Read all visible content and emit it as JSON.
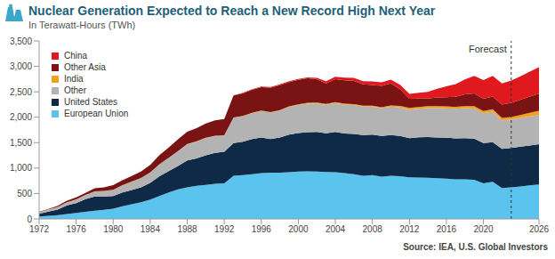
{
  "chart_data": {
    "type": "area",
    "title": "Nuclear Generation Expected to Reach a New Record High Next Year",
    "subtitle": "In Terawatt-Hours (TWh)",
    "source": "Source: IEA, U.S. Global Investors",
    "stacked": true,
    "legend": "top-left",
    "grid": false,
    "annotations": [
      {
        "text": "Forecast",
        "x": 2023
      }
    ],
    "x": [
      1972,
      1973,
      1974,
      1975,
      1976,
      1977,
      1978,
      1979,
      1980,
      1981,
      1982,
      1983,
      1984,
      1985,
      1986,
      1987,
      1988,
      1989,
      1990,
      1991,
      1992,
      1993,
      1994,
      1995,
      1996,
      1997,
      1998,
      1999,
      2000,
      2001,
      2002,
      2003,
      2004,
      2005,
      2006,
      2007,
      2008,
      2009,
      2010,
      2011,
      2012,
      2013,
      2014,
      2015,
      2016,
      2017,
      2018,
      2019,
      2020,
      2021,
      2022,
      2023,
      2024,
      2025,
      2026
    ],
    "xlim": [
      1972,
      2026
    ],
    "xticks": [
      1972,
      1976,
      1980,
      1984,
      1988,
      1992,
      1996,
      2000,
      2004,
      2008,
      2012,
      2016,
      2020,
      2026
    ],
    "ylim": [
      0,
      3500
    ],
    "yticks": [
      0,
      500,
      {
        "value": 1000,
        "label": "1,000"
      },
      {
        "value": 1500,
        "label": "1,500"
      },
      {
        "value": 2000,
        "label": "2,000"
      },
      {
        "value": 2500,
        "label": "2,500"
      },
      {
        "value": 3000,
        "label": "3,000"
      },
      {
        "value": 3500,
        "label": "3,500"
      }
    ],
    "series": [
      {
        "name": "China",
        "color": "#e0191e",
        "values": [
          0,
          0,
          0,
          0,
          0,
          0,
          0,
          0,
          0,
          0,
          0,
          0,
          0,
          0,
          0,
          0,
          0,
          0,
          0,
          0,
          0,
          3,
          13,
          13,
          14,
          14,
          14,
          15,
          17,
          18,
          25,
          43,
          50,
          53,
          55,
          62,
          68,
          70,
          74,
          86,
          97,
          112,
          133,
          171,
          213,
          248,
          295,
          348,
          366,
          408,
          418,
          435,
          460,
          490,
          520
        ]
      },
      {
        "name": "Other Asia",
        "color": "#7a1414",
        "values": [
          8,
          10,
          20,
          30,
          40,
          40,
          60,
          70,
          90,
          100,
          110,
          130,
          150,
          180,
          200,
          230,
          240,
          260,
          280,
          300,
          320,
          430,
          440,
          450,
          460,
          480,
          490,
          480,
          480,
          480,
          460,
          400,
          450,
          460,
          460,
          420,
          410,
          420,
          430,
          330,
          180,
          170,
          150,
          170,
          180,
          200,
          230,
          250,
          240,
          250,
          260,
          280,
          300,
          320,
          340
        ]
      },
      {
        "name": "India",
        "color": "#f2a11f",
        "values": [
          2,
          2,
          2,
          2,
          3,
          3,
          3,
          3,
          3,
          3,
          3,
          3,
          4,
          5,
          5,
          5,
          6,
          6,
          6,
          6,
          6,
          6,
          6,
          8,
          9,
          10,
          11,
          12,
          15,
          18,
          19,
          18,
          17,
          17,
          17,
          17,
          15,
          17,
          23,
          32,
          33,
          34,
          36,
          38,
          38,
          38,
          39,
          46,
          43,
          47,
          48,
          50,
          60,
          70,
          80
        ]
      },
      {
        "name": "Other",
        "color": "#b3b3b3",
        "values": [
          30,
          40,
          50,
          60,
          70,
          80,
          100,
          110,
          120,
          140,
          160,
          180,
          200,
          230,
          260,
          290,
          320,
          330,
          340,
          330,
          320,
          500,
          500,
          510,
          520,
          520,
          530,
          540,
          550,
          560,
          560,
          560,
          570,
          570,
          570,
          560,
          550,
          550,
          560,
          560,
          560,
          560,
          570,
          580,
          580,
          580,
          590,
          590,
          590,
          600,
          560,
          560,
          565,
          570,
          575
        ]
      },
      {
        "name": "United States",
        "color": "#0f2a47",
        "values": [
          50,
          85,
          110,
          170,
          190,
          250,
          280,
          260,
          250,
          270,
          280,
          290,
          330,
          390,
          420,
          460,
          530,
          540,
          580,
          610,
          620,
          640,
          660,
          690,
          700,
          660,
          690,
          740,
          760,
          770,
          780,
          760,
          790,
          780,
          790,
          800,
          800,
          800,
          800,
          790,
          770,
          790,
          800,
          800,
          805,
          805,
          810,
          810,
          790,
          780,
          770,
          775,
          780,
          785,
          790
        ]
      },
      {
        "name": "European Union",
        "color": "#5bc4ee",
        "values": [
          50,
          60,
          75,
          95,
          120,
          140,
          160,
          180,
          200,
          250,
          290,
          330,
          380,
          450,
          520,
          580,
          620,
          650,
          670,
          690,
          700,
          850,
          860,
          880,
          900,
          910,
          910,
          920,
          930,
          935,
          930,
          925,
          920,
          900,
          880,
          850,
          860,
          830,
          850,
          840,
          820,
          815,
          810,
          800,
          790,
          780,
          780,
          770,
          700,
          730,
          610,
          620,
          640,
          660,
          680
        ]
      }
    ]
  }
}
